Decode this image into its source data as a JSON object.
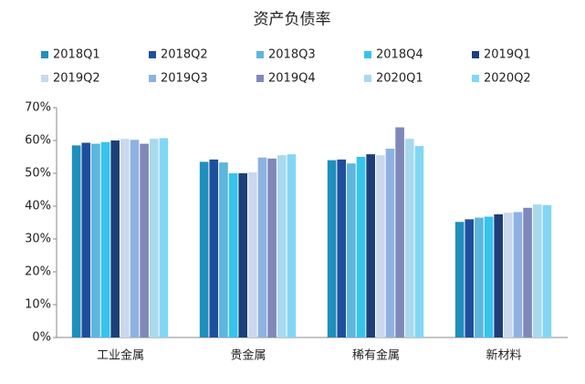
{
  "chart_data": {
    "type": "bar",
    "title": "资产负债率",
    "categories": [
      "工业金属",
      "贵金属",
      "稀有金属",
      "新材料"
    ],
    "series": [
      {
        "name": "2018Q1",
        "color": "#1f8fbd",
        "values": [
          58.5,
          53.5,
          54,
          35.2
        ]
      },
      {
        "name": "2018Q2",
        "color": "#1f4f9c",
        "values": [
          59.3,
          54.2,
          54.2,
          36
        ]
      },
      {
        "name": "2018Q3",
        "color": "#5cb6dd",
        "values": [
          59,
          53.3,
          53,
          36.5
        ]
      },
      {
        "name": "2018Q4",
        "color": "#35c3ef",
        "values": [
          59.5,
          50,
          55,
          36.8
        ]
      },
      {
        "name": "2019Q1",
        "color": "#1d3f7a",
        "values": [
          60,
          50,
          55.8,
          37.5
        ]
      },
      {
        "name": "2019Q2",
        "color": "#c9d8ef",
        "values": [
          60.5,
          50.3,
          55.5,
          38
        ]
      },
      {
        "name": "2019Q3",
        "color": "#8db2e2",
        "values": [
          60.2,
          54.8,
          57.5,
          38.2
        ]
      },
      {
        "name": "2019Q4",
        "color": "#8088ba",
        "values": [
          59,
          54.5,
          64,
          39.5
        ]
      },
      {
        "name": "2020Q1",
        "color": "#a8d9ed",
        "values": [
          60.5,
          55.5,
          60.5,
          40.5
        ]
      },
      {
        "name": "2020Q2",
        "color": "#82d7f5",
        "values": [
          60.7,
          55.8,
          58.3,
          40.3
        ]
      }
    ],
    "ylim": [
      0,
      70
    ],
    "yticks": [
      {
        "value": 0,
        "label": "0%"
      },
      {
        "value": 10,
        "label": "10%"
      },
      {
        "value": 20,
        "label": "20%"
      },
      {
        "value": 30,
        "label": "30%"
      },
      {
        "value": 40,
        "label": "40%"
      },
      {
        "value": 50,
        "label": "50%"
      },
      {
        "value": 60,
        "label": "60%"
      },
      {
        "value": 70,
        "label": "70%"
      }
    ],
    "grid": false
  }
}
